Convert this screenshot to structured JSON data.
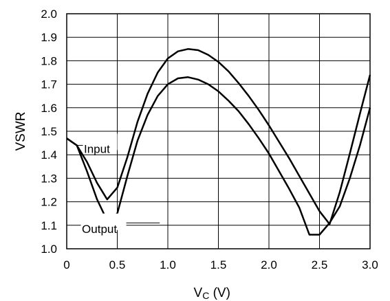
{
  "chart_data": {
    "type": "line",
    "xlabel_main": "V",
    "xlabel_sub": "C",
    "xlabel_unit": " (V)",
    "ylabel": "VSWR",
    "xlim": [
      0,
      3.0
    ],
    "ylim": [
      1.0,
      2.0
    ],
    "x_ticks": [
      0,
      0.5,
      1.0,
      1.5,
      2.0,
      2.5,
      3.0
    ],
    "x_tick_labels": [
      "0",
      "0.5",
      "1.0",
      "1.5",
      "2.0",
      "2.5",
      "3.0"
    ],
    "y_ticks": [
      1.0,
      1.1,
      1.2,
      1.3,
      1.4,
      1.5,
      1.6,
      1.7,
      1.8,
      1.9,
      2.0
    ],
    "y_tick_labels": [
      "1.0",
      "1.1",
      "1.2",
      "1.3",
      "1.4",
      "1.5",
      "1.6",
      "1.7",
      "1.8",
      "1.9",
      "2.0"
    ],
    "grid": true,
    "series": [
      {
        "name": "Input",
        "x": [
          0,
          0.1,
          0.2,
          0.3,
          0.4,
          0.5,
          0.6,
          0.7,
          0.8,
          0.9,
          1.0,
          1.1,
          1.2,
          1.3,
          1.4,
          1.5,
          1.6,
          1.7,
          1.8,
          1.9,
          2.0,
          2.1,
          2.2,
          2.3,
          2.4,
          2.5,
          2.6,
          2.7,
          2.8,
          2.9,
          3.0
        ],
        "values": [
          1.47,
          1.44,
          1.37,
          1.28,
          1.21,
          1.26,
          1.39,
          1.54,
          1.66,
          1.75,
          1.81,
          1.84,
          1.85,
          1.845,
          1.825,
          1.795,
          1.755,
          1.705,
          1.65,
          1.59,
          1.525,
          1.455,
          1.385,
          1.31,
          1.235,
          1.16,
          1.105,
          1.24,
          1.405,
          1.575,
          1.74
        ]
      },
      {
        "name": "Output",
        "x": [
          0,
          0.1,
          0.2,
          0.3,
          0.4,
          0.5,
          0.6,
          0.7,
          0.8,
          0.9,
          1.0,
          1.1,
          1.2,
          1.3,
          1.4,
          1.5,
          1.6,
          1.7,
          1.8,
          1.9,
          2.0,
          2.1,
          2.2,
          2.3,
          2.4,
          2.5,
          2.6,
          2.7,
          2.8,
          2.9,
          3.0
        ],
        "values": [
          1.47,
          1.44,
          1.33,
          1.21,
          1.12,
          1.15,
          1.31,
          1.46,
          1.57,
          1.65,
          1.7,
          1.725,
          1.73,
          1.72,
          1.7,
          1.67,
          1.63,
          1.585,
          1.53,
          1.47,
          1.405,
          1.33,
          1.255,
          1.175,
          1.06,
          1.06,
          1.11,
          1.18,
          1.3,
          1.44,
          1.6
        ]
      }
    ],
    "annotations": [
      {
        "text": "Input",
        "series": "Input"
      },
      {
        "text": "Output",
        "series": "Output"
      }
    ]
  }
}
